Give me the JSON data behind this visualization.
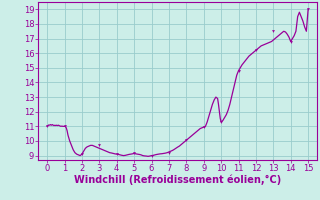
{
  "xlabel": "Windchill (Refroidissement éolien,°C)",
  "xlim": [
    -0.5,
    15.5
  ],
  "ylim": [
    8.7,
    19.5
  ],
  "xticks": [
    0,
    1,
    2,
    3,
    4,
    5,
    6,
    7,
    8,
    9,
    10,
    11,
    12,
    13,
    14,
    15
  ],
  "yticks": [
    9,
    10,
    11,
    12,
    13,
    14,
    15,
    16,
    17,
    18,
    19
  ],
  "bg_color": "#cceee8",
  "line_color": "#990099",
  "marker_color": "#990099",
  "grid_color": "#99cccc",
  "axis_color": "#990099",
  "x": [
    0.0,
    0.05,
    0.1,
    0.15,
    0.2,
    0.25,
    0.3,
    0.35,
    0.4,
    0.45,
    0.5,
    0.55,
    0.6,
    0.65,
    0.7,
    0.75,
    0.8,
    0.85,
    0.9,
    0.95,
    1.0,
    1.05,
    1.1,
    1.15,
    1.2,
    1.3,
    1.4,
    1.5,
    1.6,
    1.7,
    1.8,
    1.9,
    2.0,
    2.1,
    2.2,
    2.3,
    2.4,
    2.5,
    2.6,
    2.7,
    2.8,
    2.9,
    3.0,
    3.1,
    3.2,
    3.3,
    3.4,
    3.5,
    3.6,
    3.7,
    3.8,
    3.9,
    4.0,
    4.1,
    4.2,
    4.3,
    4.4,
    4.5,
    4.6,
    4.7,
    4.8,
    4.9,
    5.0,
    5.1,
    5.2,
    5.3,
    5.4,
    5.5,
    5.6,
    5.7,
    5.8,
    5.9,
    6.0,
    6.1,
    6.2,
    6.3,
    6.4,
    6.5,
    6.6,
    6.7,
    6.8,
    6.9,
    7.0,
    7.1,
    7.2,
    7.3,
    7.4,
    7.5,
    7.6,
    7.7,
    7.8,
    7.9,
    8.0,
    8.1,
    8.2,
    8.3,
    8.4,
    8.5,
    8.6,
    8.7,
    8.8,
    8.9,
    9.0,
    9.1,
    9.2,
    9.3,
    9.4,
    9.5,
    9.6,
    9.7,
    9.8,
    9.85,
    9.9,
    9.95,
    10.0,
    10.1,
    10.2,
    10.3,
    10.4,
    10.5,
    10.6,
    10.7,
    10.8,
    10.9,
    11.0,
    11.1,
    11.2,
    11.3,
    11.4,
    11.5,
    11.6,
    11.7,
    11.8,
    11.9,
    12.0,
    12.1,
    12.2,
    12.3,
    12.4,
    12.5,
    12.6,
    12.7,
    12.8,
    12.9,
    13.0,
    13.1,
    13.2,
    13.3,
    13.4,
    13.5,
    13.6,
    13.7,
    13.8,
    13.9,
    14.0,
    14.1,
    14.2,
    14.3,
    14.4,
    14.5,
    14.6,
    14.7,
    14.8,
    14.9,
    15.0
  ],
  "y": [
    11.0,
    11.05,
    11.1,
    11.08,
    11.12,
    11.08,
    11.12,
    11.08,
    11.05,
    11.08,
    11.05,
    11.08,
    11.05,
    11.08,
    11.05,
    11.02,
    11.0,
    11.02,
    11.0,
    11.0,
    11.0,
    11.0,
    10.9,
    10.7,
    10.4,
    10.0,
    9.7,
    9.4,
    9.2,
    9.1,
    9.05,
    9.0,
    9.1,
    9.3,
    9.5,
    9.6,
    9.65,
    9.7,
    9.7,
    9.65,
    9.6,
    9.55,
    9.5,
    9.45,
    9.4,
    9.35,
    9.3,
    9.25,
    9.2,
    9.18,
    9.15,
    9.12,
    9.1,
    9.08,
    9.05,
    9.02,
    9.0,
    9.02,
    9.05,
    9.08,
    9.1,
    9.12,
    9.15,
    9.12,
    9.1,
    9.08,
    9.05,
    9.0,
    8.98,
    8.97,
    8.95,
    8.97,
    9.0,
    9.02,
    9.05,
    9.08,
    9.1,
    9.12,
    9.13,
    9.15,
    9.17,
    9.2,
    9.25,
    9.3,
    9.35,
    9.42,
    9.5,
    9.58,
    9.65,
    9.75,
    9.85,
    9.95,
    10.05,
    10.15,
    10.25,
    10.35,
    10.45,
    10.55,
    10.65,
    10.75,
    10.85,
    10.9,
    10.95,
    11.0,
    11.3,
    11.7,
    12.1,
    12.5,
    12.8,
    13.0,
    12.9,
    12.5,
    12.0,
    11.55,
    11.3,
    11.4,
    11.6,
    11.8,
    12.1,
    12.5,
    13.0,
    13.5,
    14.0,
    14.5,
    14.8,
    15.0,
    15.2,
    15.35,
    15.5,
    15.65,
    15.8,
    15.9,
    16.0,
    16.1,
    16.2,
    16.3,
    16.4,
    16.5,
    16.55,
    16.6,
    16.65,
    16.7,
    16.75,
    16.8,
    16.9,
    17.0,
    17.1,
    17.2,
    17.3,
    17.4,
    17.5,
    17.45,
    17.3,
    17.1,
    16.8,
    17.0,
    17.2,
    17.5,
    18.5,
    18.8,
    18.5,
    18.2,
    17.8,
    17.5,
    19.0
  ],
  "marker_x": [
    0,
    1,
    2,
    3,
    4,
    5,
    6,
    7,
    8,
    9,
    10,
    11,
    12,
    13,
    14,
    15
  ],
  "marker_y": [
    11.0,
    11.0,
    9.1,
    9.7,
    9.1,
    9.15,
    8.95,
    9.15,
    10.05,
    10.95,
    11.3,
    14.8,
    16.2,
    17.5,
    16.8,
    19.0
  ],
  "font_size": 7,
  "tick_fontsize": 6
}
